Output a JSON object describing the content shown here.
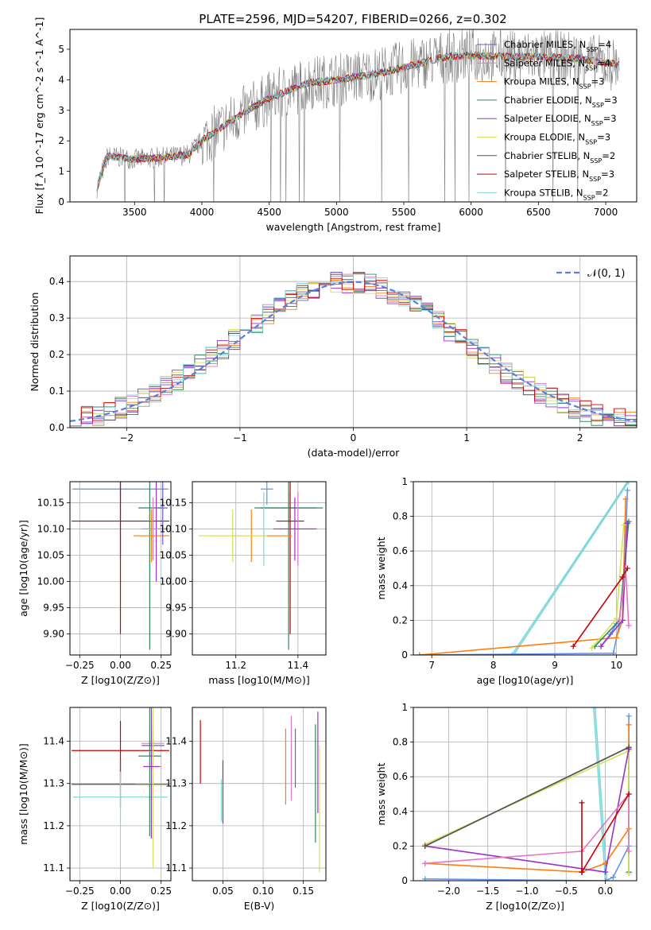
{
  "figure_title": "PLATE=2596, MJD=54207, FIBERID=0266, z=0.302",
  "chart_data": [
    {
      "id": "spectrum",
      "type": "line",
      "title": "PLATE=2596, MJD=54207, FIBERID=0266, z=0.302",
      "xlabel": "wavelength [Angstrom, rest frame]",
      "ylabel": "Flux [f_λ 10^-17 erg cm^-2 s^-1 A^-1]",
      "xlim": [
        3020,
        7230
      ],
      "ylim": [
        0,
        5.65
      ],
      "xticks": [
        3500,
        4000,
        4500,
        5000,
        5500,
        6000,
        6500,
        7000
      ],
      "yticks": [
        0,
        1,
        2,
        3,
        4,
        5
      ],
      "grid": false,
      "legend_position": "top-right",
      "data_anchor": {
        "x": [
          3200,
          3300,
          3500,
          3700,
          3900,
          4000,
          4300,
          4500,
          4800,
          5000,
          5300,
          5500,
          5800,
          6000,
          6300,
          6500,
          6800,
          7000,
          7100
        ],
        "y": [
          0.2,
          1.5,
          1.4,
          1.45,
          1.55,
          2.0,
          2.9,
          3.4,
          3.9,
          4.0,
          4.2,
          4.4,
          4.75,
          4.8,
          4.75,
          4.75,
          4.7,
          4.55,
          4.5
        ]
      },
      "legend": [
        {
          "name": "Chabrier MILES, N",
          "sub": "SSP",
          "suffix": "=4",
          "color": "#6a5acd"
        },
        {
          "name": "Salpeter MILES, N",
          "sub": "SSP",
          "suffix": "=4",
          "color": "#e377c2"
        },
        {
          "name": "Kroupa MILES, N",
          "sub": "SSP",
          "suffix": "=3",
          "color": "#ff7f0e"
        },
        {
          "name": "Chabrier ELODIE, N",
          "sub": "SSP",
          "suffix": "=3",
          "color": "#2e8b57"
        },
        {
          "name": "Salpeter ELODIE, N",
          "sub": "SSP",
          "suffix": "=3",
          "color": "#9932cc"
        },
        {
          "name": "Kroupa ELODIE, N",
          "sub": "SSP",
          "suffix": "=3",
          "color": "#d4e157"
        },
        {
          "name": "Chabrier STELIB, N",
          "sub": "SSP",
          "suffix": "=2",
          "color": "#555555"
        },
        {
          "name": "Salpeter STELIB, N",
          "sub": "SSP",
          "suffix": "=3",
          "color": "#cc0000"
        },
        {
          "name": "Kroupa STELIB, N",
          "sub": "SSP",
          "suffix": "=2",
          "color": "#7fd8d8"
        }
      ]
    },
    {
      "id": "residuals",
      "type": "line",
      "xlabel": "(data-model)/error",
      "ylabel": "Normed distribution",
      "xlim": [
        -2.5,
        2.5
      ],
      "ylim": [
        0,
        0.47
      ],
      "xticks": [
        -2,
        -1,
        0,
        1,
        2
      ],
      "yticks": [
        0.0,
        0.1,
        0.2,
        0.3,
        0.4
      ],
      "grid": true,
      "legend_position": "top-right",
      "legend_label": "𝒩(0, 1)",
      "gaussian": {
        "mu": 0,
        "sigma": 1,
        "color": "#5b7fde"
      }
    },
    {
      "id": "age-vs-z",
      "type": "scatter",
      "xlabel": "Z [log10(Z/Z⊙)]",
      "ylabel": "age  [log10(age/yr)]",
      "xlim": [
        -0.31,
        0.31
      ],
      "ylim": [
        9.86,
        10.19
      ],
      "xticks": [
        -0.25,
        0.0,
        0.25
      ],
      "xtick_labels": [
        "−0.25",
        "0.00",
        "0.25"
      ],
      "yticks": [
        9.9,
        9.95,
        10.0,
        10.05,
        10.1,
        10.15
      ],
      "yticks_labels": [
        "9.90",
        "9.95",
        "10.00",
        "10.05",
        "10.10",
        "10.15"
      ],
      "grid": true,
      "points": [
        {
          "x": 0.0,
          "y": 10.176,
          "xerr": 0.3,
          "yerr": 0.01,
          "color": "#7fd8d8"
        },
        {
          "x": 0.0,
          "y": 10.176,
          "xerr": 0.29,
          "yerr": 0.13,
          "color": "#6495ed"
        },
        {
          "x": 0.0,
          "y": 10.115,
          "xerr": 0.3,
          "yerr": 0.215,
          "color": "#cc0000"
        },
        {
          "x": 0.18,
          "y": 10.14,
          "xerr": 0.07,
          "yerr": 0.27,
          "color": "#2e8b57"
        },
        {
          "x": 0.22,
          "y": 10.1,
          "xerr": 0.07,
          "yerr": 0.1,
          "color": "#9932cc"
        },
        {
          "x": 0.2,
          "y": 10.1,
          "xerr": 0.07,
          "yerr": 0.06,
          "color": "#e377c2"
        },
        {
          "x": 0.19,
          "y": 10.087,
          "xerr": 0.11,
          "yerr": 0.05,
          "color": "#ff7f0e"
        },
        {
          "x": 0.26,
          "y": 10.14,
          "xerr": 0.03,
          "yerr": 0.07,
          "color": "#6a5acd"
        }
      ]
    },
    {
      "id": "age-vs-mass",
      "type": "scatter",
      "xlabel": "mass [log10(M/M⊙)]",
      "ylabel": "",
      "xlim": [
        11.06,
        11.49
      ],
      "ylim": [
        9.86,
        10.19
      ],
      "xticks": [
        11.2,
        11.4
      ],
      "xtick_labels": [
        "11.2",
        "11.4"
      ],
      "yticks": [
        9.9,
        9.95,
        10.0,
        10.05,
        10.1,
        10.15
      ],
      "yticks_labels": [
        "9.90",
        "9.95",
        "10.00",
        "10.05",
        "10.10",
        "10.15"
      ],
      "grid": true,
      "points": [
        {
          "x": 11.3,
          "y": 10.176,
          "xerr": 0.02,
          "yerr": 0.03,
          "color": "#6495ed"
        },
        {
          "x": 11.37,
          "y": 10.14,
          "xerr": 0.09,
          "yerr": 0.03,
          "color": "#6a5acd"
        },
        {
          "x": 11.37,
          "y": 10.14,
          "xerr": 0.11,
          "yerr": 0.27,
          "color": "#2e8b57"
        },
        {
          "x": 11.375,
          "y": 10.115,
          "xerr": 0.045,
          "yerr": 0.215,
          "color": "#cc0000"
        },
        {
          "x": 11.4,
          "y": 10.1,
          "xerr": 0.06,
          "yerr": 0.07,
          "color": "#e377c2"
        },
        {
          "x": 11.39,
          "y": 10.1,
          "xerr": 0.07,
          "yerr": 0.06,
          "color": "#9932cc"
        },
        {
          "x": 11.25,
          "y": 10.087,
          "xerr": 0.13,
          "yerr": 0.05,
          "color": "#ff7f0e"
        },
        {
          "x": 11.19,
          "y": 10.087,
          "xerr": 0.11,
          "yerr": 0.05,
          "color": "#d4e157"
        },
        {
          "x": 11.29,
          "y": 10.1,
          "xerr": 0.02,
          "yerr": 0.07,
          "color": "#7fd8d8"
        }
      ]
    },
    {
      "id": "weight-vs-age",
      "type": "line",
      "xlabel": "age  [log10(age/yr)]",
      "ylabel": "mass weight",
      "xlim": [
        6.7,
        10.33
      ],
      "ylim": [
        0,
        1
      ],
      "xticks": [
        7,
        8,
        9,
        10
      ],
      "yticks": [
        0.0,
        0.2,
        0.4,
        0.6,
        0.8,
        1.0
      ],
      "grid": true,
      "series": [
        {
          "color": "#7fd8d8",
          "x": [
            8.3,
            10.18
          ],
          "y": [
            0.0,
            1.0
          ]
        },
        {
          "color": "#7fd8d8",
          "x": [
            8.33,
            10.2
          ],
          "y": [
            0.0,
            1.0
          ]
        },
        {
          "color": "#6495ed",
          "x": [
            6.8,
            9.95,
            10.05,
            10.1,
            10.18
          ],
          "y": [
            0.0,
            0.01,
            0.18,
            0.2,
            0.95
          ]
        },
        {
          "color": "#6495ed",
          "x": [
            9.75,
            9.9,
            10.0
          ],
          "y": [
            0.05,
            0.12,
            0.18
          ]
        },
        {
          "color": "#ff7f0e",
          "x": [
            6.8,
            10.0,
            10.1,
            10.15
          ],
          "y": [
            0.0,
            0.1,
            0.2,
            0.9
          ]
        },
        {
          "color": "#2e8b57",
          "x": [
            9.65,
            10.05,
            10.2
          ],
          "y": [
            0.05,
            0.2,
            0.77
          ]
        },
        {
          "color": "#d4e157",
          "x": [
            9.6,
            10.0,
            10.12
          ],
          "y": [
            0.04,
            0.21,
            0.75
          ]
        },
        {
          "color": "#9932cc",
          "x": [
            9.75,
            10.1,
            10.18
          ],
          "y": [
            0.05,
            0.2,
            0.76
          ]
        },
        {
          "color": "#e377c2",
          "x": [
            10.05,
            10.15,
            10.2
          ],
          "y": [
            0.2,
            0.5,
            0.17
          ]
        },
        {
          "color": "#cc0000",
          "x": [
            9.3,
            10.1,
            10.18
          ],
          "y": [
            0.05,
            0.45,
            0.5
          ]
        }
      ]
    },
    {
      "id": "mass-vs-z",
      "type": "scatter",
      "xlabel": "Z [log10(Z/Z⊙)]",
      "ylabel": "mass [log10(M/M⊙)]",
      "xlim": [
        -0.31,
        0.31
      ],
      "ylim": [
        11.07,
        11.48
      ],
      "xticks": [
        -0.25,
        0.0,
        0.25
      ],
      "xtick_labels": [
        "−0.25",
        "0.00",
        "0.25"
      ],
      "yticks": [
        11.1,
        11.2,
        11.3,
        11.4
      ],
      "yticks_labels": [
        "11.1",
        "11.2",
        "11.3",
        "11.4"
      ],
      "grid": true,
      "points": [
        {
          "x": 0.0,
          "y": 11.378,
          "xerr": 0.3,
          "yerr": 0.07,
          "color": "#cc0000"
        },
        {
          "x": 0.0,
          "y": 11.298,
          "xerr": 0.3,
          "yerr": 0.055,
          "color": "#555555"
        },
        {
          "x": 0.0,
          "y": 11.268,
          "xerr": 0.29,
          "yerr": 0.06,
          "color": "#7fd8d8"
        },
        {
          "x": 0.2,
          "y": 11.39,
          "xerr": 0.07,
          "yerr": 0.05,
          "color": "#6a5acd"
        },
        {
          "x": 0.2,
          "y": 11.395,
          "xerr": 0.07,
          "yerr": 0.03,
          "color": "#e377c2"
        },
        {
          "x": 0.18,
          "y": 11.365,
          "xerr": 0.07,
          "yerr": 0.19,
          "color": "#2e8b57"
        },
        {
          "x": 0.2,
          "y": 11.34,
          "xerr": 0.05,
          "yerr": 0.08,
          "color": "#ff7f0e"
        },
        {
          "x": 0.2,
          "y": 11.3,
          "xerr": 0.11,
          "yerr": 0.2,
          "color": "#d4e157"
        },
        {
          "x": 0.19,
          "y": 11.34,
          "xerr": 0.05,
          "yerr": 0.17,
          "color": "#9932cc"
        }
      ]
    },
    {
      "id": "mass-vs-ebv",
      "type": "scatter",
      "xlabel": "E(B-V)",
      "ylabel": "",
      "xlim": [
        0.012,
        0.178
      ],
      "ylim": [
        11.07,
        11.48
      ],
      "xticks": [
        0.05,
        0.1,
        0.15
      ],
      "xtick_labels": [
        "0.05",
        "0.10",
        "0.15"
      ],
      "yticks": [
        11.1,
        11.2,
        11.3,
        11.4
      ],
      "yticks_labels": [
        "11.1",
        "11.2",
        "11.3",
        "11.4"
      ],
      "grid": true,
      "points": [
        {
          "x": 0.022,
          "y": 11.375,
          "xerr": 0,
          "yerr": 0.075,
          "color": "#cc0000"
        },
        {
          "x": 0.048,
          "y": 11.26,
          "xerr": 0,
          "yerr": 0.05,
          "color": "#7fd8d8"
        },
        {
          "x": 0.05,
          "y": 11.28,
          "xerr": 0,
          "yerr": 0.075,
          "color": "#555555"
        },
        {
          "x": 0.128,
          "y": 11.34,
          "xerr": 0,
          "yerr": 0.09,
          "color": "#ff7f0e"
        },
        {
          "x": 0.135,
          "y": 11.36,
          "xerr": 0,
          "yerr": 0.1,
          "color": "#e377c2"
        },
        {
          "x": 0.14,
          "y": 11.36,
          "xerr": 0,
          "yerr": 0.07,
          "color": "#6a5acd"
        },
        {
          "x": 0.165,
          "y": 11.3,
          "xerr": 0,
          "yerr": 0.14,
          "color": "#2e8b57"
        },
        {
          "x": 0.168,
          "y": 11.35,
          "xerr": 0,
          "yerr": 0.12,
          "color": "#9932cc"
        },
        {
          "x": 0.17,
          "y": 11.24,
          "xerr": 0,
          "yerr": 0.15,
          "color": "#d4e157"
        }
      ]
    },
    {
      "id": "weight-vs-z",
      "type": "line",
      "xlabel": "Z [log10(Z/Z⊙)]",
      "ylabel": "mass weight",
      "xlim": [
        -2.45,
        0.4
      ],
      "ylim": [
        0,
        1
      ],
      "xticks": [
        -2.0,
        -1.5,
        -1.0,
        -0.5,
        0.0
      ],
      "xtick_labels": [
        "−2.0",
        "−1.5",
        "−1.0",
        "−0.5",
        "0.0"
      ],
      "yticks": [
        0.0,
        0.2,
        0.4,
        0.6,
        0.8,
        1.0
      ],
      "grid": true,
      "series": [
        {
          "color": "#7fd8d8",
          "x": [
            -0.15,
            0.0
          ],
          "y": [
            1.0,
            0.0
          ]
        },
        {
          "color": "#7fd8d8",
          "x": [
            -0.13,
            0.02
          ],
          "y": [
            1.0,
            0.0
          ]
        },
        {
          "color": "#6495ed",
          "x": [
            -2.3,
            0.0,
            0.1,
            0.3,
            0.3
          ],
          "y": [
            0.01,
            0.0,
            0.02,
            0.2,
            0.95
          ]
        },
        {
          "color": "#ff7f0e",
          "x": [
            -2.3,
            -0.3,
            0.0,
            0.3,
            0.3
          ],
          "y": [
            0.1,
            0.05,
            0.1,
            0.3,
            0.9
          ]
        },
        {
          "color": "#2e8b57",
          "x": [
            -2.3,
            0.3,
            0.3,
            0.3
          ],
          "y": [
            0.2,
            0.77,
            0.05,
            0.05
          ]
        },
        {
          "color": "#d4e157",
          "x": [
            -2.3,
            0.3,
            0.3
          ],
          "y": [
            0.21,
            0.75,
            0.04
          ]
        },
        {
          "color": "#9932cc",
          "x": [
            -2.3,
            0.0,
            0.3,
            0.3
          ],
          "y": [
            0.2,
            0.05,
            0.76,
            0.76
          ]
        },
        {
          "color": "#e377c2",
          "x": [
            -2.3,
            -0.3,
            0.3,
            0.3
          ],
          "y": [
            0.1,
            0.17,
            0.5,
            0.17
          ]
        },
        {
          "color": "#cc0000",
          "x": [
            -0.3,
            -0.3,
            -0.3
          ],
          "y": [
            0.05,
            0.45,
            0.05
          ]
        },
        {
          "color": "#cc0000",
          "x": [
            -0.3,
            0.3
          ],
          "y": [
            0.05,
            0.5
          ]
        },
        {
          "color": "#555555",
          "x": [
            -2.3,
            0.3
          ],
          "y": [
            0.2,
            0.77
          ]
        }
      ]
    }
  ]
}
